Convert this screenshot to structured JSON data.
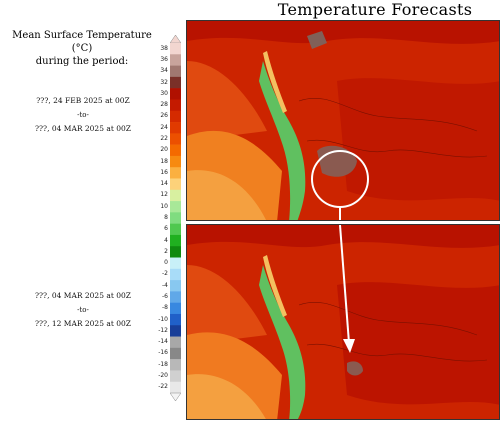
{
  "title": "Temperature Forecasts",
  "legend": {
    "heading_line1": "Mean Surface Temperature (°C)",
    "heading_line2": "during the period:",
    "ticks": [
      "38",
      "36",
      "34",
      "32",
      "30",
      "28",
      "26",
      "24",
      "22",
      "20",
      "18",
      "16",
      "14",
      "12",
      "10",
      "8",
      "6",
      "4",
      "2",
      "0",
      "-2",
      "-4",
      "-6",
      "-8",
      "-10",
      "-12",
      "-14",
      "-16",
      "-18",
      "-20",
      "-22"
    ],
    "colors": [
      "#f2d6d0",
      "#c8a49c",
      "#a07870",
      "#7a3028",
      "#b01000",
      "#c41a00",
      "#d42a00",
      "#e03a00",
      "#ec5000",
      "#f46a00",
      "#f78a10",
      "#fbb040",
      "#fdd27a",
      "#d8f0a0",
      "#a8e898",
      "#80dc80",
      "#50c850",
      "#20b020",
      "#108a10",
      "#c8f0f8",
      "#a8dcf8",
      "#88c8f0",
      "#60a8e8",
      "#3888e0",
      "#2060c8",
      "#183e98",
      "#a8a8a8",
      "#888888",
      "#b8b8b8",
      "#d0d0d0",
      "#e8e8e8"
    ]
  },
  "periods": [
    {
      "from": "???, 24 FEB 2025 at 00Z",
      "to_label": "-to-",
      "until": "???, 04 MAR 2025 at 00Z"
    },
    {
      "from": "???, 04 MAR 2025 at 00Z",
      "to_label": "-to-",
      "until": "???, 12 MAR 2025 at 00Z"
    }
  ],
  "maps": [
    {
      "panel": "forecast-panel-1",
      "highlight": "circle"
    },
    {
      "panel": "forecast-panel-2",
      "highlight": "arrow-target"
    }
  ],
  "colors": {
    "hot": "#c41a00",
    "warm": "#e84a10",
    "orange": "#f47a10",
    "green": "#60c060",
    "annotation": "#ffffff"
  }
}
